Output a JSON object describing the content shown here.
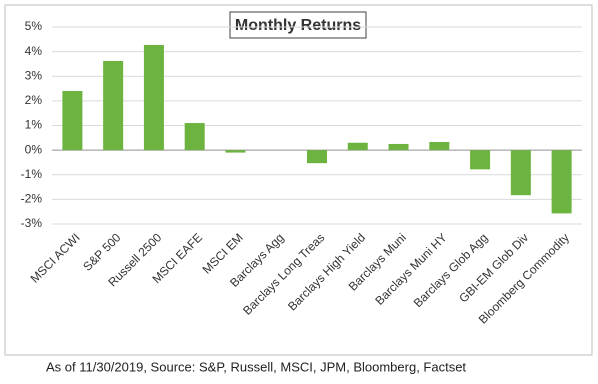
{
  "chart_data": {
    "type": "bar",
    "title": "Monthly Returns",
    "categories": [
      "MSCI ACWI",
      "S&P 500",
      "Russell 2500",
      "MSCI EAFE",
      "MSCI EM",
      "Barclays Agg",
      "Barclays Long Treas",
      "Barclays High Yield",
      "Barclays Muni",
      "Barclays Muni HY",
      "Barclays Glob Agg",
      "GBI-EM Glob Div",
      "Bloomberg Commodity"
    ],
    "values": [
      2.4,
      3.62,
      4.27,
      1.1,
      -0.1,
      0.0,
      -0.53,
      0.3,
      0.25,
      0.33,
      -0.78,
      -1.83,
      -2.57
    ],
    "color": "#6db33f",
    "ylim": [
      -3,
      5
    ],
    "yticks": [
      {
        "value": -3,
        "label": "-3%"
      },
      {
        "value": -2,
        "label": "-2%"
      },
      {
        "value": -1,
        "label": "-1%"
      },
      {
        "value": 0,
        "label": "0%"
      },
      {
        "value": 1,
        "label": "1%"
      },
      {
        "value": 2,
        "label": "2%"
      },
      {
        "value": 3,
        "label": "3%"
      },
      {
        "value": 4,
        "label": "4%"
      },
      {
        "value": 5,
        "label": "5%"
      }
    ],
    "grid": true,
    "source": "As of 11/30/2019, Source: S&P, Russell, MSCI, JPM, Bloomberg, Factset"
  }
}
